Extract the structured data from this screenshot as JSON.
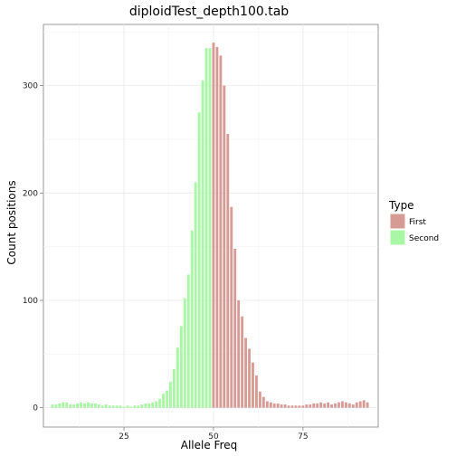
{
  "chart_data": {
    "type": "bar",
    "title": "diploidTest_depth100.tab",
    "xlabel": "Allele Freq",
    "ylabel": "Count positions",
    "xlim": [
      2.5,
      96
    ],
    "ylim": [
      -18,
      357
    ],
    "x_ticks": [
      25,
      50,
      75
    ],
    "y_ticks": [
      0,
      100,
      200,
      300
    ],
    "grid": true,
    "legend": {
      "title": "Type",
      "position": "right"
    },
    "colors": {
      "First": "#d79b96",
      "Second": "#a8f7a4"
    },
    "series": [
      {
        "name": "Second",
        "x": [
          5,
          6,
          7,
          8,
          9,
          10,
          11,
          12,
          13,
          14,
          15,
          16,
          17,
          18,
          19,
          20,
          21,
          22,
          23,
          24,
          25,
          26,
          27,
          28,
          29,
          30,
          31,
          32,
          33,
          34,
          35,
          36,
          37,
          38,
          39,
          40,
          41,
          42,
          43,
          44,
          45,
          46,
          47,
          48,
          49
        ],
        "values": [
          3,
          3,
          4,
          5,
          5,
          3,
          3,
          4,
          5,
          4,
          5,
          4,
          4,
          3,
          2,
          3,
          2,
          2,
          2,
          2,
          1,
          2,
          1,
          2,
          2,
          3,
          4,
          4,
          5,
          6,
          8,
          13,
          16,
          24,
          36,
          56,
          76,
          102,
          124,
          165,
          210,
          275,
          305,
          335,
          335
        ]
      },
      {
        "name": "First",
        "x": [
          50,
          51,
          52,
          53,
          54,
          55,
          56,
          57,
          58,
          59,
          60,
          61,
          62,
          63,
          64,
          65,
          66,
          67,
          68,
          69,
          70,
          71,
          72,
          73,
          74,
          75,
          76,
          77,
          78,
          79,
          80,
          81,
          82,
          83,
          84,
          85,
          86,
          87,
          88,
          89,
          90,
          91,
          92,
          93
        ],
        "values": [
          340,
          336,
          328,
          300,
          255,
          187,
          148,
          100,
          85,
          65,
          55,
          42,
          30,
          15,
          10,
          6,
          5,
          4,
          4,
          3,
          3,
          2,
          2,
          2,
          2,
          2,
          3,
          3,
          4,
          4,
          5,
          4,
          5,
          3,
          4,
          5,
          6,
          5,
          4,
          3,
          5,
          6,
          7,
          5
        ]
      }
    ]
  }
}
